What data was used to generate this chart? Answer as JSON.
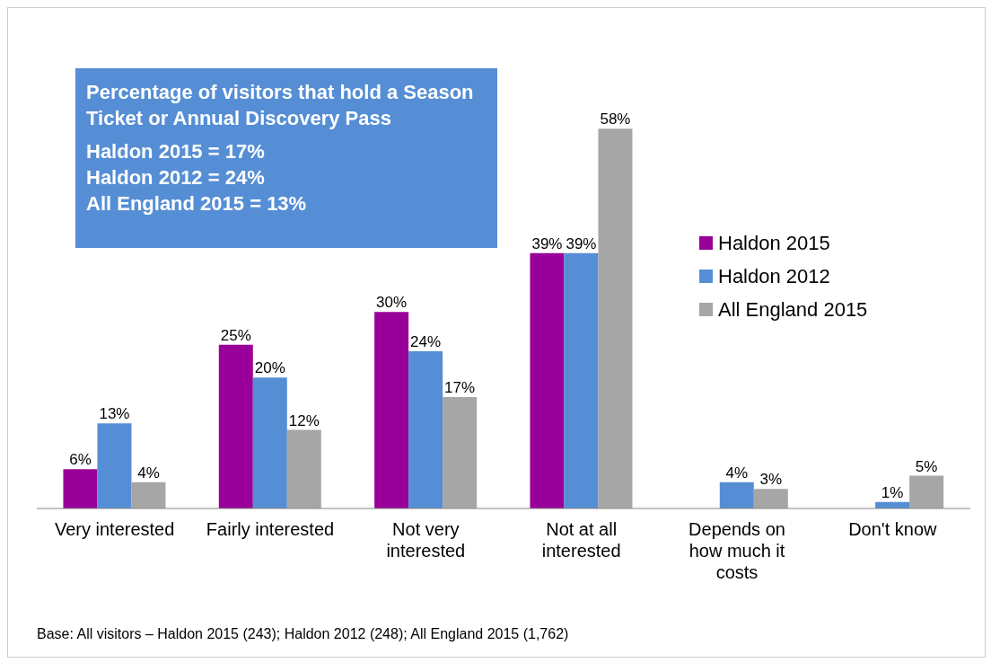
{
  "chart_data": {
    "type": "bar",
    "title": "Percentage of visitors that hold a Season Ticket or Annual Discovery Pass",
    "subtitle": "Haldon 2015 = 17%\nHaldon 2012 = 24%\nAll England 2015 = 13%",
    "categories": [
      "Very interested",
      "Fairly interested",
      "Not very\ninterested",
      "Not at all\ninterested",
      "Depends on\nhow much it\ncosts",
      "Don't know"
    ],
    "series": [
      {
        "name": "Haldon 2015",
        "color": "#990099",
        "values": [
          6,
          25,
          30,
          39,
          null,
          null
        ],
        "value_labels": [
          "6%",
          "25%",
          "30%",
          "39%",
          null,
          null
        ]
      },
      {
        "name": "Haldon 2012",
        "color": "#558ed5",
        "values": [
          13,
          20,
          24,
          39,
          4,
          1
        ],
        "value_labels": [
          "13%",
          "20%",
          "24%",
          "39%",
          "4%",
          "1%"
        ]
      },
      {
        "name": "All England 2015",
        "color": "#a6a6a6",
        "values": [
          4,
          12,
          17,
          58,
          3,
          5
        ],
        "value_labels": [
          "4%",
          "12%",
          "17%",
          "58%",
          "3%",
          "5%"
        ]
      }
    ],
    "legend": "right",
    "grid": false,
    "annotations": [
      "Base: All visitors – Haldon 2015 (243); Haldon 2012 (248); All England 2015 (1,762)"
    ]
  }
}
